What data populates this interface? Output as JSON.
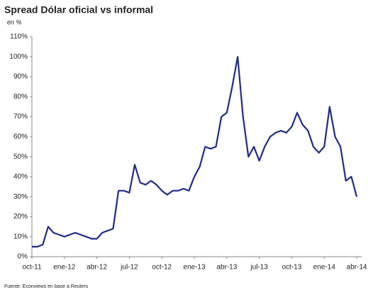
{
  "chart_data": {
    "type": "line",
    "title": "Spread Dólar oficial vs informal",
    "subtitle": "en %",
    "source": "Fuente: Econviews en base a Reuters",
    "categories": [
      "oct-11",
      null,
      null,
      null,
      null,
      null,
      "ene-12",
      null,
      null,
      null,
      null,
      null,
      "abr-12",
      null,
      null,
      null,
      null,
      null,
      "jul-12",
      null,
      null,
      null,
      null,
      null,
      "oct-12",
      null,
      null,
      null,
      null,
      null,
      "ene-13",
      null,
      null,
      null,
      null,
      null,
      "abr-13",
      null,
      null,
      null,
      null,
      null,
      "jul-13",
      null,
      null,
      null,
      null,
      null,
      "oct-13",
      null,
      null,
      null,
      null,
      null,
      "ene-14",
      null,
      null,
      null,
      null,
      null,
      "abr-14"
    ],
    "series": [
      {
        "color": "#1f2a8a",
        "values": [
          5,
          5,
          6,
          15,
          12,
          11,
          10,
          11,
          12,
          11,
          10,
          9,
          9,
          12,
          13,
          14,
          33,
          33,
          32,
          46,
          37,
          36,
          38,
          36,
          33,
          31,
          33,
          33,
          34,
          33,
          40,
          45,
          55,
          54,
          55,
          70,
          72,
          85,
          100,
          70,
          50,
          55,
          48,
          55,
          60,
          62,
          63,
          62,
          65,
          72,
          66,
          63,
          55,
          52,
          55,
          75,
          60,
          55,
          38,
          40,
          30
        ]
      }
    ],
    "ylim": [
      0,
      110
    ],
    "yticks": [
      {
        "value": 0,
        "label": "0%"
      },
      {
        "value": 10,
        "label": "10%"
      },
      {
        "value": 20,
        "label": "20%"
      },
      {
        "value": 30,
        "label": "30%"
      },
      {
        "value": 40,
        "label": "40%"
      },
      {
        "value": 50,
        "label": "50%"
      },
      {
        "value": 60,
        "label": "60%"
      },
      {
        "value": 70,
        "label": "70%"
      },
      {
        "value": 80,
        "label": "80%"
      },
      {
        "value": 90,
        "label": "90%"
      },
      {
        "value": 100,
        "label": "100%"
      },
      {
        "value": 110,
        "label": "110%"
      }
    ],
    "grid": false
  }
}
